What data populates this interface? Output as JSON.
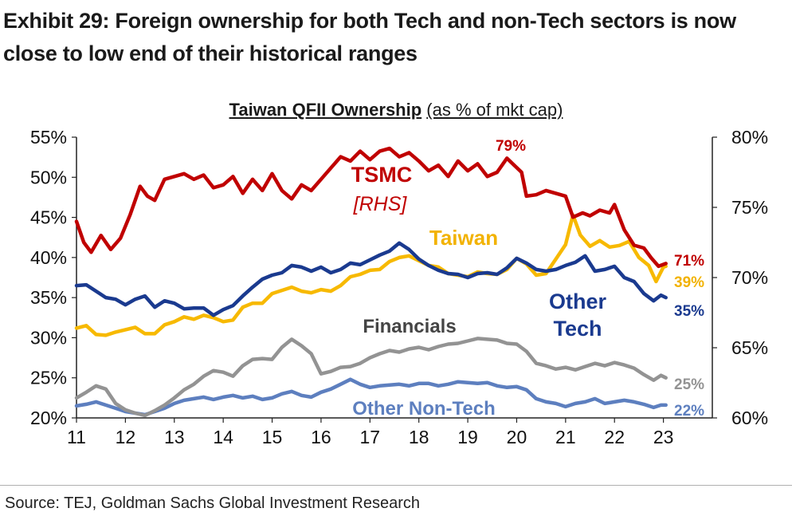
{
  "exhibit_title": "Exhibit 29: Foreign ownership for both Tech and non-Tech sectors is now close to low end of their historical ranges",
  "source": "Source: TEJ, Goldman Sachs Global Investment Research",
  "chart_data": {
    "type": "line",
    "title": "Taiwan QFII Ownership",
    "subtitle": "(as % of mkt cap)",
    "x_ticks": [
      "11",
      "12",
      "13",
      "14",
      "15",
      "16",
      "17",
      "18",
      "19",
      "20",
      "21",
      "22",
      "23"
    ],
    "xlim": [
      2011,
      2024
    ],
    "y_left": {
      "lim": [
        20,
        55
      ],
      "ticks": [
        "20%",
        "25%",
        "30%",
        "35%",
        "40%",
        "45%",
        "50%",
        "55%"
      ]
    },
    "y_right": {
      "lim": [
        60,
        80
      ],
      "ticks": [
        "60%",
        "65%",
        "70%",
        "75%",
        "80%"
      ]
    },
    "series": [
      {
        "name": "TSMC",
        "name_sub": "[RHS]",
        "axis": "right",
        "color": "#c00000",
        "end_label": "71%",
        "peak_label": "79%",
        "x": [
          2011.0,
          2011.15,
          2011.3,
          2011.5,
          2011.7,
          2011.9,
          2012.1,
          2012.3,
          2012.45,
          2012.6,
          2012.8,
          2013.0,
          2013.2,
          2013.4,
          2013.6,
          2013.8,
          2014.0,
          2014.2,
          2014.4,
          2014.6,
          2014.8,
          2015.0,
          2015.2,
          2015.4,
          2015.6,
          2015.8,
          2016.0,
          2016.2,
          2016.4,
          2016.6,
          2016.8,
          2017.0,
          2017.2,
          2017.4,
          2017.6,
          2017.8,
          2018.0,
          2018.2,
          2018.4,
          2018.6,
          2018.8,
          2019.0,
          2019.2,
          2019.4,
          2019.6,
          2019.8,
          2019.95,
          2020.1,
          2020.2,
          2020.4,
          2020.6,
          2020.8,
          2021.0,
          2021.15,
          2021.35,
          2021.5,
          2021.7,
          2021.9,
          2022.0,
          2022.2,
          2022.4,
          2022.6,
          2022.75,
          2022.9,
          2023.05
        ],
        "y": [
          74.0,
          72.5,
          71.8,
          73.0,
          72.0,
          72.8,
          74.5,
          76.5,
          75.8,
          75.5,
          77.0,
          77.2,
          77.4,
          77.0,
          77.3,
          76.4,
          76.6,
          77.2,
          76.0,
          77.0,
          76.2,
          77.4,
          76.2,
          75.6,
          76.6,
          76.2,
          77.0,
          77.8,
          78.6,
          78.3,
          79.0,
          78.4,
          79.0,
          79.2,
          78.6,
          78.9,
          78.3,
          77.6,
          78.0,
          77.2,
          78.3,
          77.6,
          78.1,
          77.2,
          77.5,
          78.5,
          78.0,
          77.5,
          75.8,
          75.9,
          76.2,
          76.0,
          75.8,
          74.3,
          74.6,
          74.4,
          74.8,
          74.6,
          75.2,
          73.4,
          72.3,
          72.1,
          71.4,
          70.8,
          71.0
        ]
      },
      {
        "name": "Taiwan",
        "axis": "left",
        "color": "#f7b900",
        "end_label": "39%",
        "x": [
          2011.0,
          2011.2,
          2011.4,
          2011.6,
          2011.8,
          2012.0,
          2012.2,
          2012.4,
          2012.6,
          2012.8,
          2013.0,
          2013.2,
          2013.4,
          2013.6,
          2013.8,
          2014.0,
          2014.2,
          2014.4,
          2014.6,
          2014.8,
          2015.0,
          2015.2,
          2015.4,
          2015.6,
          2015.8,
          2016.0,
          2016.2,
          2016.4,
          2016.6,
          2016.8,
          2017.0,
          2017.2,
          2017.4,
          2017.6,
          2017.8,
          2018.0,
          2018.2,
          2018.4,
          2018.6,
          2018.8,
          2019.0,
          2019.2,
          2019.4,
          2019.6,
          2019.8,
          2020.0,
          2020.2,
          2020.4,
          2020.6,
          2020.8,
          2021.0,
          2021.15,
          2021.3,
          2021.5,
          2021.7,
          2021.9,
          2022.1,
          2022.3,
          2022.5,
          2022.7,
          2022.85,
          2023.0,
          2023.05
        ],
        "y": [
          31.2,
          31.5,
          30.4,
          30.3,
          30.7,
          31.0,
          31.3,
          30.5,
          30.5,
          31.6,
          32.0,
          32.6,
          32.3,
          32.8,
          32.5,
          32.0,
          32.2,
          33.8,
          34.3,
          34.3,
          35.5,
          35.9,
          36.3,
          35.8,
          35.6,
          36.0,
          35.8,
          36.5,
          37.6,
          37.9,
          38.4,
          38.5,
          39.5,
          40.0,
          40.2,
          39.6,
          39.0,
          38.8,
          38.0,
          37.8,
          37.6,
          38.2,
          38.0,
          37.9,
          38.5,
          39.9,
          39.2,
          37.8,
          38.0,
          39.8,
          41.6,
          45.3,
          42.8,
          41.4,
          42.1,
          41.3,
          41.5,
          42.0,
          40.0,
          39.0,
          37.0,
          38.8,
          38.9
        ]
      },
      {
        "name": "Other Tech",
        "axis": "left",
        "color": "#1a3a8f",
        "end_label": "35%",
        "x": [
          2011.0,
          2011.2,
          2011.4,
          2011.6,
          2011.8,
          2012.0,
          2012.2,
          2012.4,
          2012.6,
          2012.8,
          2013.0,
          2013.2,
          2013.4,
          2013.6,
          2013.8,
          2014.0,
          2014.2,
          2014.4,
          2014.6,
          2014.8,
          2015.0,
          2015.2,
          2015.4,
          2015.6,
          2015.8,
          2016.0,
          2016.2,
          2016.4,
          2016.6,
          2016.8,
          2017.0,
          2017.2,
          2017.4,
          2017.6,
          2017.8,
          2018.0,
          2018.2,
          2018.4,
          2018.6,
          2018.8,
          2019.0,
          2019.2,
          2019.4,
          2019.6,
          2019.8,
          2020.0,
          2020.2,
          2020.4,
          2020.6,
          2020.8,
          2021.0,
          2021.2,
          2021.4,
          2021.6,
          2021.8,
          2022.0,
          2022.2,
          2022.4,
          2022.6,
          2022.8,
          2022.95,
          2023.05
        ],
        "y": [
          36.5,
          36.6,
          35.8,
          35.0,
          34.8,
          34.1,
          34.8,
          35.2,
          33.8,
          34.6,
          34.3,
          33.6,
          33.7,
          33.7,
          32.8,
          33.5,
          34.0,
          35.2,
          36.3,
          37.3,
          37.8,
          38.1,
          39.0,
          38.8,
          38.3,
          38.8,
          38.1,
          38.5,
          39.3,
          39.1,
          39.7,
          40.3,
          40.8,
          41.8,
          41.0,
          39.8,
          39.0,
          38.4,
          38.0,
          37.9,
          37.5,
          38.0,
          38.1,
          37.9,
          38.7,
          39.9,
          39.3,
          38.5,
          38.3,
          38.5,
          39.0,
          39.4,
          40.2,
          38.3,
          38.5,
          38.9,
          37.5,
          37.0,
          35.5,
          34.6,
          35.3,
          35.0
        ]
      },
      {
        "name": "Financials",
        "axis": "left",
        "color": "#939393",
        "end_label": "25%",
        "x": [
          2011.0,
          2011.2,
          2011.4,
          2011.6,
          2011.8,
          2012.0,
          2012.2,
          2012.4,
          2012.6,
          2012.8,
          2013.0,
          2013.2,
          2013.4,
          2013.6,
          2013.8,
          2014.0,
          2014.2,
          2014.4,
          2014.6,
          2014.8,
          2015.0,
          2015.2,
          2015.4,
          2015.6,
          2015.8,
          2016.0,
          2016.2,
          2016.4,
          2016.6,
          2016.8,
          2017.0,
          2017.2,
          2017.4,
          2017.6,
          2017.8,
          2018.0,
          2018.2,
          2018.4,
          2018.6,
          2018.8,
          2019.0,
          2019.2,
          2019.4,
          2019.6,
          2019.8,
          2020.0,
          2020.2,
          2020.4,
          2020.6,
          2020.8,
          2021.0,
          2021.2,
          2021.4,
          2021.6,
          2021.8,
          2022.0,
          2022.2,
          2022.4,
          2022.6,
          2022.8,
          2022.95,
          2023.05
        ],
        "y": [
          22.5,
          23.2,
          24.0,
          23.6,
          21.8,
          21.0,
          20.6,
          20.3,
          20.9,
          21.6,
          22.5,
          23.5,
          24.2,
          25.2,
          25.9,
          25.7,
          25.2,
          26.5,
          27.3,
          27.4,
          27.3,
          28.8,
          29.8,
          29.0,
          28.0,
          25.5,
          25.8,
          26.3,
          26.4,
          26.8,
          27.5,
          28.0,
          28.4,
          28.2,
          28.6,
          28.8,
          28.5,
          28.9,
          29.2,
          29.3,
          29.6,
          29.9,
          29.8,
          29.7,
          29.3,
          29.2,
          28.3,
          26.8,
          26.5,
          26.1,
          26.3,
          26.0,
          26.4,
          26.8,
          26.5,
          26.9,
          26.6,
          26.2,
          25.4,
          24.7,
          25.3,
          25.0
        ]
      },
      {
        "name": "Other Non-Tech",
        "axis": "left",
        "color": "#5d7fbf",
        "end_label": "22%",
        "x": [
          2011.0,
          2011.2,
          2011.4,
          2011.6,
          2011.8,
          2012.0,
          2012.2,
          2012.4,
          2012.6,
          2012.8,
          2013.0,
          2013.2,
          2013.4,
          2013.6,
          2013.8,
          2014.0,
          2014.2,
          2014.4,
          2014.6,
          2014.8,
          2015.0,
          2015.2,
          2015.4,
          2015.6,
          2015.8,
          2016.0,
          2016.2,
          2016.4,
          2016.6,
          2016.8,
          2017.0,
          2017.2,
          2017.4,
          2017.6,
          2017.8,
          2018.0,
          2018.2,
          2018.4,
          2018.6,
          2018.8,
          2019.0,
          2019.2,
          2019.4,
          2019.6,
          2019.8,
          2020.0,
          2020.2,
          2020.4,
          2020.6,
          2020.8,
          2021.0,
          2021.2,
          2021.4,
          2021.6,
          2021.8,
          2022.0,
          2022.2,
          2022.4,
          2022.6,
          2022.8,
          2022.95,
          2023.05
        ],
        "y": [
          21.5,
          21.7,
          22.0,
          21.6,
          21.2,
          20.8,
          20.6,
          20.4,
          20.8,
          21.2,
          21.8,
          22.2,
          22.4,
          22.6,
          22.3,
          22.6,
          22.8,
          22.5,
          22.7,
          22.3,
          22.5,
          23.0,
          23.3,
          22.8,
          22.6,
          23.2,
          23.6,
          24.2,
          24.8,
          24.2,
          23.8,
          24.0,
          24.1,
          24.2,
          24.0,
          24.3,
          24.3,
          24.0,
          24.2,
          24.5,
          24.4,
          24.3,
          24.4,
          24.0,
          23.8,
          23.9,
          23.5,
          22.4,
          22.0,
          21.8,
          21.4,
          21.8,
          22.0,
          22.4,
          21.8,
          22.0,
          22.2,
          22.0,
          21.7,
          21.3,
          21.6,
          21.6
        ]
      }
    ],
    "annotations": {
      "financials": "Financials",
      "other_non_tech": "Other Non-Tech",
      "other_tech_line1": "Other",
      "other_tech_line2": "Tech",
      "taiwan": "Taiwan",
      "tsmc": "TSMC",
      "tsmc_rhs": "[RHS]"
    }
  }
}
